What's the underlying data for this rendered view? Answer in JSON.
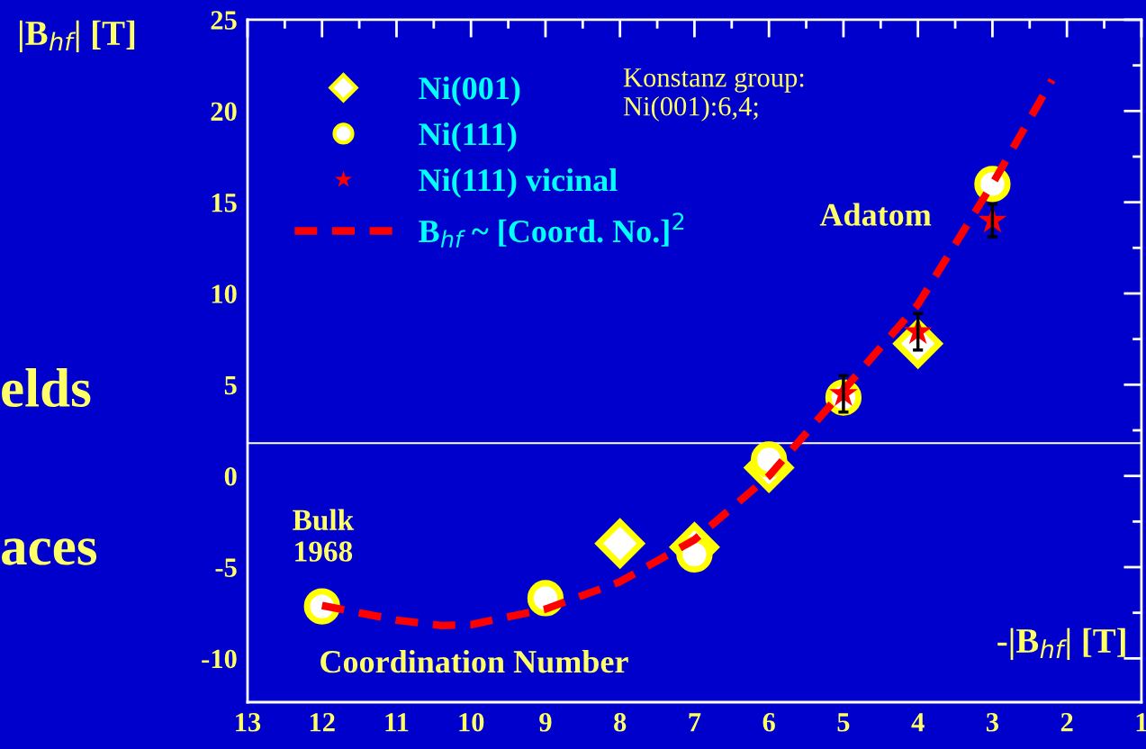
{
  "chart_data": {
    "type": "scatter",
    "ylabel": "|B$_{hf}$| [T]",
    "xlim": [
      13,
      1
    ],
    "xticks": [
      13,
      12,
      11,
      10,
      9,
      8,
      7,
      6,
      5,
      4,
      3,
      2,
      1
    ],
    "ylim": [
      -12.4,
      25
    ],
    "yticks": [
      -10,
      -5,
      0,
      5,
      10,
      15,
      20,
      25
    ],
    "series": [
      {
        "name": "Ni(001)",
        "marker": "diamond",
        "color": "#ffff00",
        "x": [
          8,
          7,
          6,
          4
        ],
        "values": [
          -3.7,
          -3.9,
          0.45,
          7.25
        ]
      },
      {
        "name": "Ni(111)",
        "marker": "circle",
        "color": "#ffff00",
        "x": [
          12,
          9,
          7,
          6,
          5,
          3
        ],
        "values": [
          -7.15,
          -6.7,
          -4.3,
          0.9,
          4.3,
          16.0
        ]
      },
      {
        "name": "Ni(111) vicinal",
        "marker": "star",
        "color": "#ff0000",
        "x": [
          5,
          4,
          3
        ],
        "values": [
          4.5,
          7.9,
          14.0
        ],
        "errors": [
          1.0,
          1.0,
          0.9
        ]
      },
      {
        "name": "B$_{hf}$ ~ [Coord. No.]$^{2}$",
        "type": "line",
        "line_style": "dashed",
        "color": "#ff0000",
        "x": [
          12,
          11,
          10.4,
          10,
          9,
          8,
          7,
          6,
          5,
          4,
          3,
          2.2
        ],
        "values": [
          -7.1,
          -7.9,
          -8.2,
          -8.15,
          -7.3,
          -5.8,
          -3.5,
          0,
          4.7,
          9.4,
          16.0,
          21.7
        ]
      }
    ],
    "ref_lines": [
      {
        "axis": "y",
        "value": 1.8,
        "color": "#ffffff"
      }
    ],
    "legend": "top left",
    "annotations": [
      "Konstanz group:\nNi(001):6,4;",
      "Adatom",
      "Bulk\n1968",
      "Coordination Number",
      "-|B$_{hf}$| [T]",
      "elds",
      "aces"
    ]
  }
}
